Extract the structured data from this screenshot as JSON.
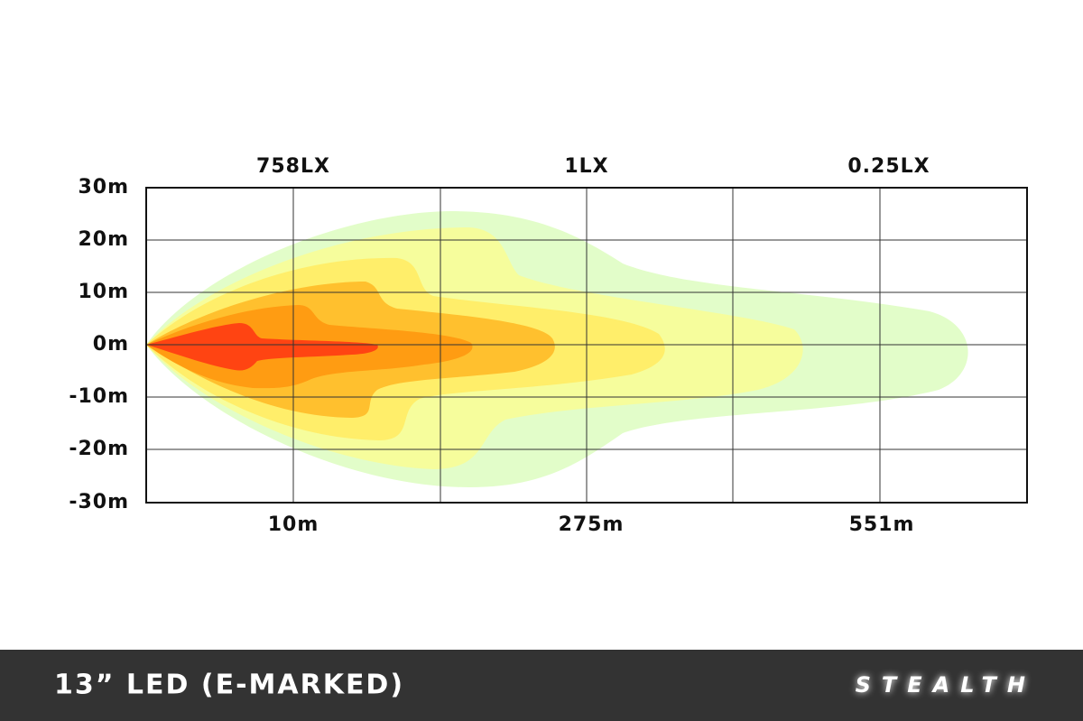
{
  "diagram": {
    "top_labels": [
      "758LX",
      "1LX",
      "0.25LX"
    ],
    "y_labels": [
      "30m",
      "20m",
      "10m",
      "0m",
      "-10m",
      "-20m",
      "-30m"
    ],
    "x_labels": [
      "10m",
      "275m",
      "551m"
    ],
    "footer": {
      "title": "13” LED (E-MARKED)",
      "brand": "STEALTH"
    }
  }
}
